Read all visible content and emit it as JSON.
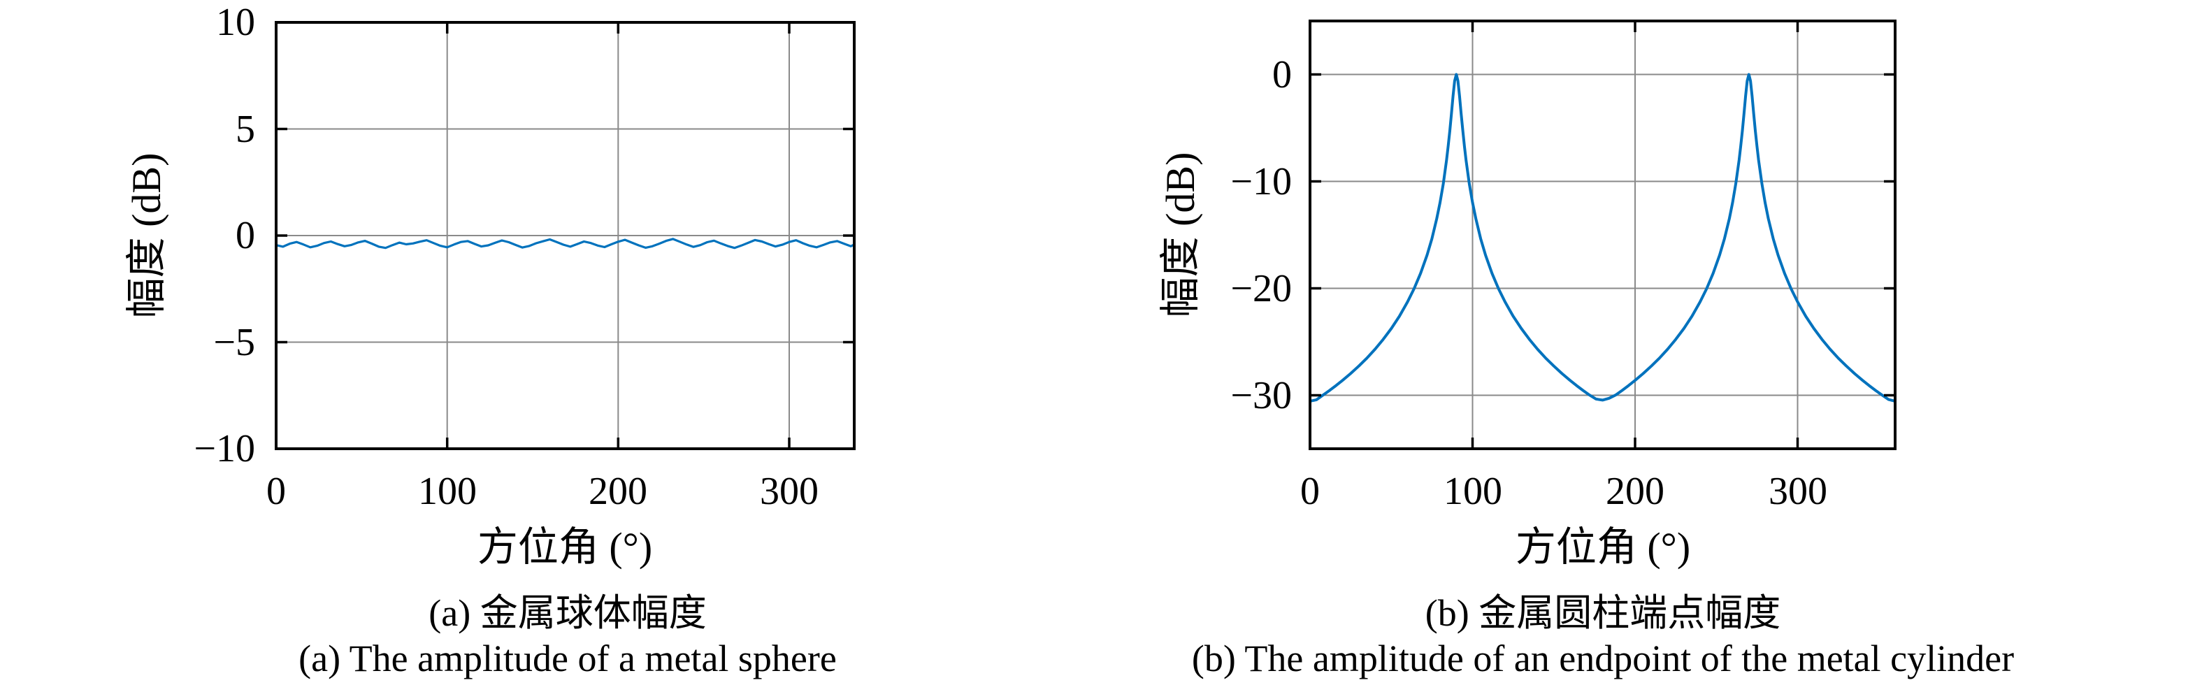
{
  "page": {
    "background": "#ffffff",
    "text_color": "#000000",
    "grid_color": "#8a8a8a",
    "axis_color": "#000000"
  },
  "chart_data": [
    {
      "type": "line",
      "title_zh": "(a) 金属球体幅度",
      "title_en": "(a) The amplitude of a metal sphere",
      "xlabel": "方位角 (°)",
      "ylabel": "幅度 (dB)",
      "xlim": [
        0,
        338
      ],
      "ylim": [
        -10,
        10
      ],
      "xticks": [
        0,
        100,
        200,
        300
      ],
      "yticks": [
        -10,
        -5,
        0,
        5,
        10
      ],
      "grid": true,
      "legend": null,
      "line_color": "#0072BD",
      "x": [
        0,
        4,
        8,
        12,
        16,
        20,
        24,
        28,
        32,
        36,
        40,
        44,
        48,
        52,
        56,
        60,
        64,
        68,
        72,
        76,
        80,
        84,
        88,
        92,
        96,
        100,
        104,
        108,
        112,
        116,
        120,
        124,
        128,
        132,
        136,
        140,
        144,
        148,
        152,
        156,
        160,
        164,
        168,
        172,
        176,
        180,
        184,
        188,
        192,
        196,
        200,
        204,
        208,
        212,
        216,
        220,
        224,
        228,
        232,
        236,
        240,
        244,
        248,
        252,
        256,
        260,
        264,
        268,
        272,
        276,
        280,
        284,
        288,
        292,
        296,
        300,
        304,
        308,
        312,
        316,
        320,
        324,
        328,
        332,
        336,
        338
      ],
      "y": [
        -0.45,
        -0.52,
        -0.38,
        -0.3,
        -0.42,
        -0.55,
        -0.48,
        -0.35,
        -0.28,
        -0.4,
        -0.5,
        -0.44,
        -0.32,
        -0.25,
        -0.38,
        -0.52,
        -0.58,
        -0.45,
        -0.33,
        -0.41,
        -0.37,
        -0.29,
        -0.22,
        -0.35,
        -0.48,
        -0.55,
        -0.42,
        -0.3,
        -0.26,
        -0.39,
        -0.51,
        -0.46,
        -0.34,
        -0.23,
        -0.31,
        -0.44,
        -0.56,
        -0.49,
        -0.36,
        -0.27,
        -0.18,
        -0.3,
        -0.43,
        -0.52,
        -0.4,
        -0.28,
        -0.35,
        -0.47,
        -0.54,
        -0.41,
        -0.29,
        -0.2,
        -0.33,
        -0.46,
        -0.57,
        -0.5,
        -0.38,
        -0.25,
        -0.16,
        -0.29,
        -0.42,
        -0.53,
        -0.45,
        -0.31,
        -0.24,
        -0.37,
        -0.49,
        -0.58,
        -0.47,
        -0.34,
        -0.21,
        -0.28,
        -0.4,
        -0.51,
        -0.43,
        -0.3,
        -0.22,
        -0.36,
        -0.48,
        -0.55,
        -0.44,
        -0.32,
        -0.26,
        -0.38,
        -0.5,
        -0.42
      ]
    },
    {
      "type": "line",
      "title_zh": "(b) 金属圆柱端点幅度",
      "title_en": "(b) The amplitude of an endpoint of the metal cylinder",
      "xlabel": "方位角 (°)",
      "ylabel": "幅度 (dB)",
      "xlim": [
        0,
        360
      ],
      "ylim": [
        -35,
        5
      ],
      "xticks": [
        0,
        100,
        200,
        300
      ],
      "yticks": [
        -30,
        -20,
        -10,
        0
      ],
      "grid": true,
      "legend": null,
      "line_color": "#0072BD",
      "peaks_deg": [
        90,
        270
      ],
      "peak_value_db": 0,
      "valley_value_db": -30.5,
      "x": [
        0,
        4,
        8,
        12,
        16,
        20,
        25,
        30,
        35,
        40,
        45,
        50,
        55,
        60,
        64,
        68,
        72,
        75,
        78,
        80,
        82,
        84,
        85,
        86,
        87,
        88,
        89,
        90,
        91,
        92,
        93,
        94,
        95,
        96,
        98,
        100,
        102,
        105,
        108,
        112,
        116,
        120,
        125,
        130,
        135,
        140,
        145,
        150,
        155,
        160,
        164,
        168,
        172,
        176,
        180,
        184,
        188,
        192,
        196,
        200,
        205,
        210,
        215,
        220,
        225,
        230,
        235,
        240,
        244,
        248,
        252,
        255,
        258,
        260,
        262,
        264,
        265,
        266,
        267,
        268,
        269,
        270,
        271,
        272,
        273,
        274,
        275,
        276,
        278,
        280,
        282,
        285,
        288,
        292,
        296,
        300,
        305,
        310,
        315,
        320,
        325,
        330,
        335,
        340,
        344,
        348,
        352,
        356,
        360
      ],
      "y": [
        -30.55,
        -30.42,
        -29.98,
        -29.55,
        -29.09,
        -28.61,
        -27.97,
        -27.27,
        -26.52,
        -25.69,
        -24.78,
        -23.76,
        -22.61,
        -21.27,
        -20.04,
        -18.61,
        -16.9,
        -15.35,
        -13.48,
        -11.98,
        -10.2,
        -8.01,
        -6.72,
        -5.27,
        -3.68,
        -2.02,
        -0.6,
        0,
        -0.6,
        -2.02,
        -3.68,
        -5.27,
        -6.72,
        -8.01,
        -10.2,
        -11.98,
        -13.48,
        -15.35,
        -16.9,
        -18.61,
        -20.04,
        -21.27,
        -22.61,
        -23.76,
        -24.78,
        -25.69,
        -26.52,
        -27.27,
        -27.97,
        -28.61,
        -29.09,
        -29.55,
        -29.98,
        -30.35,
        -30.45,
        -30.28,
        -29.98,
        -29.55,
        -29.09,
        -28.61,
        -27.97,
        -27.27,
        -26.52,
        -25.69,
        -24.78,
        -23.76,
        -22.61,
        -21.27,
        -20.04,
        -18.61,
        -16.9,
        -15.35,
        -13.48,
        -11.98,
        -10.2,
        -8.01,
        -6.72,
        -5.27,
        -3.68,
        -2.02,
        -0.6,
        0,
        -0.6,
        -2.02,
        -3.68,
        -5.27,
        -6.72,
        -8.01,
        -10.2,
        -11.98,
        -13.48,
        -15.35,
        -16.9,
        -18.61,
        -20.04,
        -21.27,
        -22.61,
        -23.76,
        -24.78,
        -25.69,
        -26.52,
        -27.27,
        -27.97,
        -28.61,
        -29.09,
        -29.55,
        -29.98,
        -30.4,
        -30.55
      ]
    }
  ]
}
